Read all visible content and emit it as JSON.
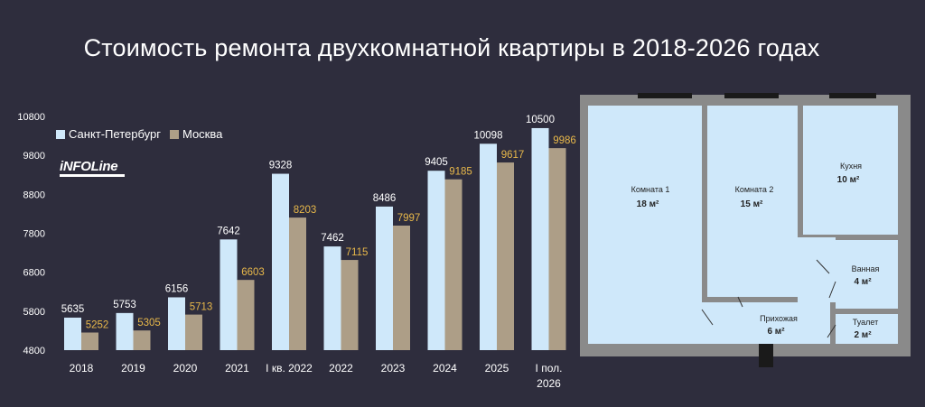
{
  "title": "Стоимость ремонта двухкомнатной квартиры в 2018-2026 годах",
  "logo": {
    "text": "iNFOLine"
  },
  "legend": [
    {
      "name": "Санкт-Петербург",
      "color": "#cfe8fa"
    },
    {
      "name": "Москва",
      "color": "#ad9e87"
    }
  ],
  "chart_data": {
    "type": "bar",
    "categories": [
      "2018",
      "2019",
      "2020",
      "2021",
      "I кв. 2022",
      "2022",
      "2023",
      "2024",
      "2025",
      "I пол. 2026"
    ],
    "series": [
      {
        "name": "Санкт-Петербург",
        "values": [
          5635,
          5753,
          6156,
          7642,
          9328,
          7462,
          8486,
          9405,
          10098,
          10500
        ],
        "color": "#cfe8fa",
        "label_color": "#ffffff"
      },
      {
        "name": "Москва",
        "values": [
          5252,
          5305,
          5713,
          6603,
          8203,
          7115,
          7997,
          9185,
          9617,
          9986
        ],
        "color": "#ad9e87",
        "label_color": "#e8b84a"
      }
    ],
    "ylim": [
      4800,
      10800
    ],
    "yticks": [
      4800,
      5800,
      6800,
      7800,
      8800,
      9800,
      10800
    ],
    "xlabel": "",
    "ylabel": "",
    "grid": false,
    "legend_position": "top-left"
  },
  "floorplan": {
    "rooms": [
      {
        "name": "Комната 1",
        "area": "18",
        "unit": "м²"
      },
      {
        "name": "Комната 2",
        "area": "15",
        "unit": "м²"
      },
      {
        "name": "Кухня",
        "area": "10",
        "unit": "м²"
      },
      {
        "name": "Ванная",
        "area": "4",
        "unit": "м²"
      },
      {
        "name": "Прихожая",
        "area": "6",
        "unit": "м²"
      },
      {
        "name": "Туалет",
        "area": "2",
        "unit": "м²"
      }
    ],
    "wall_color": "#8a8a8a",
    "floor_color": "#cfe8fa"
  }
}
